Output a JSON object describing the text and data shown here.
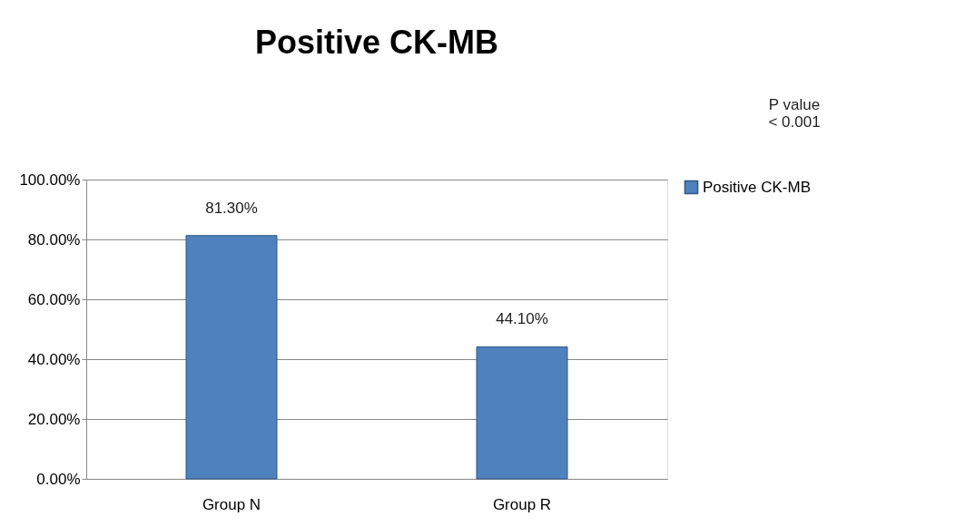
{
  "chart_data": {
    "type": "bar",
    "title": "Positive CK-MB",
    "categories": [
      "Group N",
      "Group R"
    ],
    "series": [
      {
        "name": "Positive CK-MB",
        "color": "#4f81bd",
        "values": [
          81.3,
          44.1
        ],
        "value_labels": [
          "81.30%",
          "44.10%"
        ]
      }
    ],
    "ylim": [
      0,
      100
    ],
    "yticks": [
      {
        "value": 0,
        "label": "0.00%"
      },
      {
        "value": 20,
        "label": "20.00%"
      },
      {
        "value": 40,
        "label": "40.00%"
      },
      {
        "value": 60,
        "label": "60.00%"
      },
      {
        "value": 80,
        "label": "80.00%"
      },
      {
        "value": 100,
        "label": "100.00%"
      }
    ],
    "grid": "y",
    "legend": "right",
    "annotations": [
      "P value\n< 0.001"
    ]
  }
}
